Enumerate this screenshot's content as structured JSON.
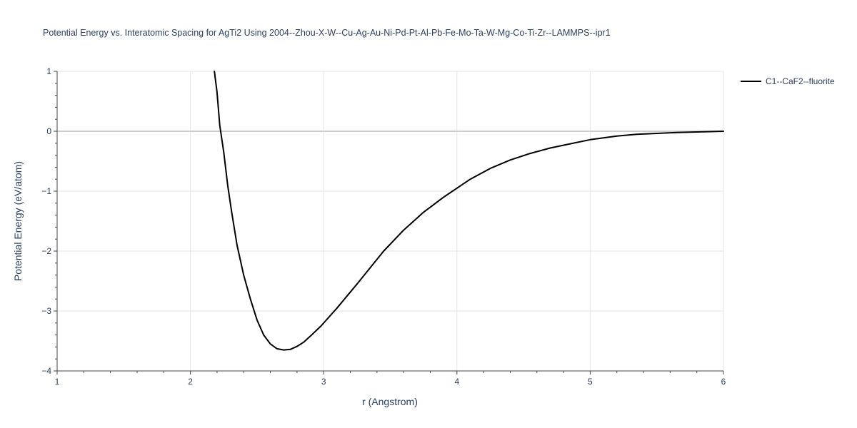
{
  "chart_data": {
    "type": "line",
    "title": "Potential Energy vs. Interatomic Spacing for AgTi2 Using 2004--Zhou-X-W--Cu-Ag-Au-Ni-Pd-Pt-Al-Pb-Fe-Mo-Ta-W-Mg-Co-Ti-Zr--LAMMPS--ipr1",
    "xlabel": "r (Angstrom)",
    "ylabel": "Potential Energy (eV/atom)",
    "xlim": [
      1,
      6
    ],
    "ylim": [
      -4,
      1
    ],
    "x_ticks": [
      1,
      2,
      3,
      4,
      5,
      6
    ],
    "y_ticks": [
      1,
      0,
      -1,
      -2,
      -3,
      -4
    ],
    "x_tick_labels": [
      "1",
      "2",
      "3",
      "4",
      "5",
      "6"
    ],
    "y_tick_labels": [
      "1",
      "0",
      "−1",
      "−2",
      "−3",
      "−4"
    ],
    "grid": true,
    "legend_position": "top-right",
    "series": [
      {
        "name": "C1--CaF2--fluorite",
        "color": "#000000",
        "x": [
          2.18,
          2.2,
          2.22,
          2.25,
          2.28,
          2.31,
          2.35,
          2.4,
          2.45,
          2.5,
          2.55,
          2.6,
          2.65,
          2.7,
          2.75,
          2.8,
          2.85,
          2.9,
          2.98,
          3.1,
          3.25,
          3.45,
          3.6,
          3.75,
          3.9,
          4.1,
          4.25,
          4.4,
          4.55,
          4.7,
          4.85,
          5.0,
          5.2,
          5.35,
          5.65,
          6.0
        ],
        "y": [
          1.0,
          0.65,
          0.1,
          -0.35,
          -0.9,
          -1.35,
          -1.9,
          -2.4,
          -2.8,
          -3.15,
          -3.4,
          -3.55,
          -3.63,
          -3.65,
          -3.64,
          -3.59,
          -3.52,
          -3.42,
          -3.25,
          -2.95,
          -2.55,
          -2.0,
          -1.65,
          -1.35,
          -1.1,
          -0.8,
          -0.62,
          -0.48,
          -0.37,
          -0.28,
          -0.21,
          -0.14,
          -0.08,
          -0.05,
          -0.02,
          0.0
        ]
      }
    ]
  }
}
